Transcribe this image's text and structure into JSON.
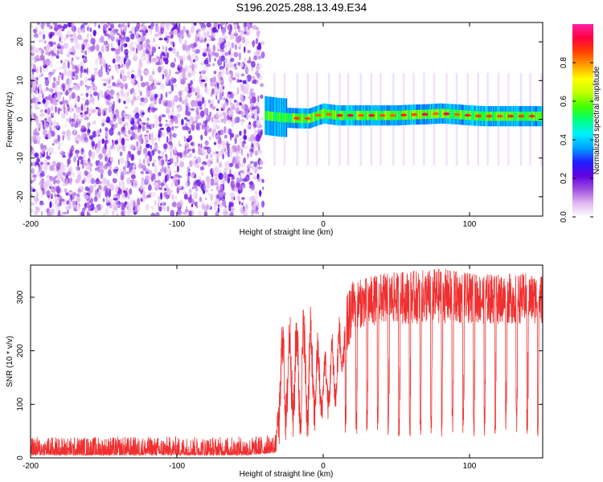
{
  "title": "S196.2025.288.13.49.E34",
  "chart_data": [
    {
      "type": "heatmap",
      "name": "spectrogram",
      "xlabel": "Height of straight line (km)",
      "ylabel": "Frequency (Hz)",
      "xlim": [
        -200,
        150
      ],
      "ylim": [
        -25,
        25
      ],
      "x_ticks": [
        -200,
        -100,
        0,
        100
      ],
      "x_tick_labels": [
        "-200",
        "-100",
        "0",
        "100"
      ],
      "y_ticks": [
        -20,
        -10,
        0,
        10,
        20
      ],
      "y_tick_labels": [
        "-20",
        "-10",
        "0",
        "10",
        "20"
      ],
      "noise_region_x": [
        -200,
        -40
      ],
      "signal_onset_x": -40,
      "carrier_track": [
        {
          "x": -40,
          "y": 1.0
        },
        {
          "x": -30,
          "y": 0.5
        },
        {
          "x": -20,
          "y": 0.3
        },
        {
          "x": -10,
          "y": 0.2
        },
        {
          "x": 0,
          "y": 1.5
        },
        {
          "x": 10,
          "y": 1.0
        },
        {
          "x": 20,
          "y": 1.0
        },
        {
          "x": 30,
          "y": 1.0
        },
        {
          "x": 40,
          "y": 1.0
        },
        {
          "x": 50,
          "y": 1.0
        },
        {
          "x": 60,
          "y": 1.2
        },
        {
          "x": 70,
          "y": 1.3
        },
        {
          "x": 80,
          "y": 1.5
        },
        {
          "x": 90,
          "y": 1.3
        },
        {
          "x": 100,
          "y": 1.0
        },
        {
          "x": 110,
          "y": 0.8
        },
        {
          "x": 120,
          "y": 0.8
        },
        {
          "x": 130,
          "y": 0.8
        },
        {
          "x": 140,
          "y": 0.8
        },
        {
          "x": 150,
          "y": 0.8
        }
      ],
      "colorbar": {
        "label": "Normalized spectral amplitude",
        "range": [
          0.0,
          1.0
        ],
        "ticks": [
          0.0,
          0.2,
          0.4,
          0.6,
          0.8
        ],
        "tick_labels": [
          "0.0",
          "0.2",
          "0.4",
          "0.6",
          "0.8"
        ],
        "colors": [
          "#ffffff",
          "#e0b8f0",
          "#a050e0",
          "#6000e0",
          "#2020ff",
          "#00a0ff",
          "#00f0ff",
          "#00ff80",
          "#40ff00",
          "#c0ff00",
          "#ffff00",
          "#ffa000",
          "#ff4000",
          "#ff0040",
          "#ff20a0"
        ]
      }
    },
    {
      "type": "line",
      "name": "snr",
      "xlabel": "Height of straight line (km)",
      "ylabel": "SNR (10 * v/v)",
      "xlim": [
        -200,
        150
      ],
      "ylim": [
        0,
        360
      ],
      "x_ticks": [
        -200,
        -100,
        0,
        100
      ],
      "x_tick_labels": [
        "-200",
        "-100",
        "0",
        "100"
      ],
      "y_ticks": [
        0,
        100,
        200,
        300
      ],
      "y_tick_labels": [
        "0",
        "100",
        "200",
        "300"
      ],
      "line_color": "#f03030",
      "envelope": [
        {
          "x": -200,
          "lo": 5,
          "hi": 40
        },
        {
          "x": -150,
          "lo": 5,
          "hi": 40
        },
        {
          "x": -100,
          "lo": 5,
          "hi": 40
        },
        {
          "x": -50,
          "lo": 5,
          "hi": 40
        },
        {
          "x": -32,
          "lo": 10,
          "hi": 45
        },
        {
          "x": -30,
          "lo": 20,
          "hi": 270
        },
        {
          "x": -20,
          "lo": 20,
          "hi": 290
        },
        {
          "x": -10,
          "lo": 20,
          "hi": 300
        },
        {
          "x": 0,
          "lo": 60,
          "hi": 200
        },
        {
          "x": 10,
          "lo": 80,
          "hi": 260
        },
        {
          "x": 20,
          "lo": 240,
          "hi": 330
        },
        {
          "x": 40,
          "lo": 250,
          "hi": 345
        },
        {
          "x": 60,
          "lo": 250,
          "hi": 350
        },
        {
          "x": 80,
          "lo": 250,
          "hi": 355
        },
        {
          "x": 100,
          "lo": 250,
          "hi": 345
        },
        {
          "x": 120,
          "lo": 250,
          "hi": 345
        },
        {
          "x": 150,
          "lo": 250,
          "hi": 345
        }
      ],
      "dropouts": {
        "start": 15,
        "end": 148,
        "spacing": 7.3,
        "floor_hi": 100,
        "floor_lo": 40
      }
    }
  ]
}
